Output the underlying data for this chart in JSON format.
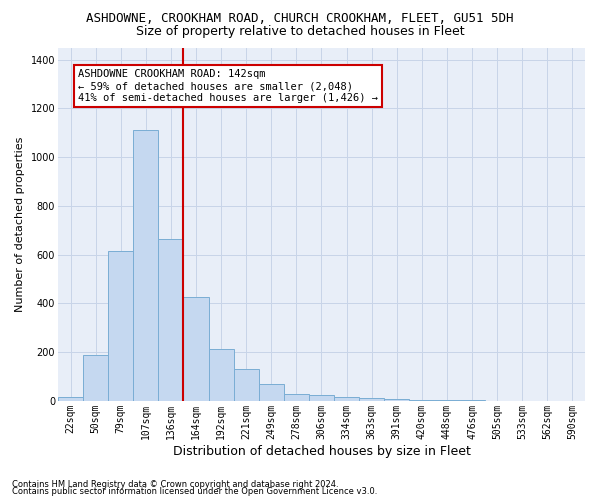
{
  "title": "ASHDOWNE, CROOKHAM ROAD, CHURCH CROOKHAM, FLEET, GU51 5DH",
  "subtitle": "Size of property relative to detached houses in Fleet",
  "xlabel": "Distribution of detached houses by size in Fleet",
  "ylabel": "Number of detached properties",
  "categories": [
    "22sqm",
    "50sqm",
    "79sqm",
    "107sqm",
    "136sqm",
    "164sqm",
    "192sqm",
    "221sqm",
    "249sqm",
    "278sqm",
    "306sqm",
    "334sqm",
    "363sqm",
    "391sqm",
    "420sqm",
    "448sqm",
    "476sqm",
    "505sqm",
    "533sqm",
    "562sqm",
    "590sqm"
  ],
  "values": [
    15,
    190,
    615,
    1110,
    665,
    425,
    215,
    130,
    70,
    30,
    25,
    18,
    10,
    8,
    5,
    3,
    2,
    1,
    1,
    1,
    1
  ],
  "bar_color": "#c5d8f0",
  "bar_edge_color": "#7aadd4",
  "vline_color": "#cc0000",
  "annotation_text": "ASHDOWNE CROOKHAM ROAD: 142sqm\n← 59% of detached houses are smaller (2,048)\n41% of semi-detached houses are larger (1,426) →",
  "annotation_box_color": "#ffffff",
  "annotation_box_edge": "#cc0000",
  "ylim": [
    0,
    1450
  ],
  "yticks": [
    0,
    200,
    400,
    600,
    800,
    1000,
    1200,
    1400
  ],
  "grid_color": "#c8d4e8",
  "background_color": "#e8eef8",
  "footer1": "Contains HM Land Registry data © Crown copyright and database right 2024.",
  "footer2": "Contains public sector information licensed under the Open Government Licence v3.0.",
  "title_fontsize": 9,
  "subtitle_fontsize": 9,
  "tick_fontsize": 7,
  "ylabel_fontsize": 8,
  "xlabel_fontsize": 9,
  "annotation_fontsize": 7.5
}
